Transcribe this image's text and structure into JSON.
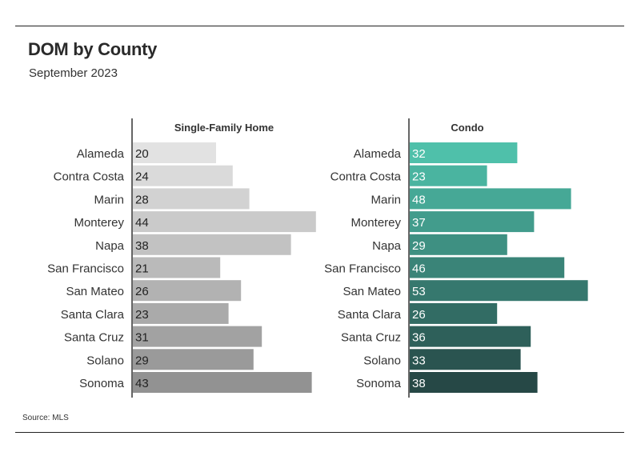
{
  "header": {
    "title": "DOM by County",
    "subtitle": "September 2023"
  },
  "footer": {
    "source": "Source:  MLS"
  },
  "chart_data": [
    {
      "type": "bar",
      "orientation": "horizontal",
      "title": "Single-Family Home",
      "categories": [
        "Alameda",
        "Contra Costa",
        "Marin",
        "Monterey",
        "Napa",
        "San Francisco",
        "San Mateo",
        "Santa Clara",
        "Santa Cruz",
        "Solano",
        "Sonoma"
      ],
      "values": [
        20,
        24,
        28,
        44,
        38,
        21,
        26,
        23,
        31,
        29,
        43
      ],
      "colors": [
        "#e2e2e2",
        "#dadada",
        "#d2d2d2",
        "#cacaca",
        "#c2c2c2",
        "#bababa",
        "#b2b2b2",
        "#aaaaaa",
        "#a2a2a2",
        "#9a9a9a",
        "#929292"
      ],
      "value_text_color": "#222222"
    },
    {
      "type": "bar",
      "orientation": "horizontal",
      "title": "Condo",
      "categories": [
        "Alameda",
        "Contra Costa",
        "Marin",
        "Monterey",
        "Napa",
        "San Francisco",
        "San Mateo",
        "Santa Clara",
        "Santa Cruz",
        "Solano",
        "Sonoma"
      ],
      "values": [
        32,
        23,
        48,
        37,
        29,
        46,
        53,
        26,
        36,
        33,
        38
      ],
      "colors": [
        "#4fc0aa",
        "#4ab4a0",
        "#46a896",
        "#429c8c",
        "#3e9082",
        "#3a8478",
        "#36786e",
        "#326c64",
        "#2e605a",
        "#2a5450",
        "#264846"
      ],
      "value_text_color": "#ffffff"
    }
  ]
}
